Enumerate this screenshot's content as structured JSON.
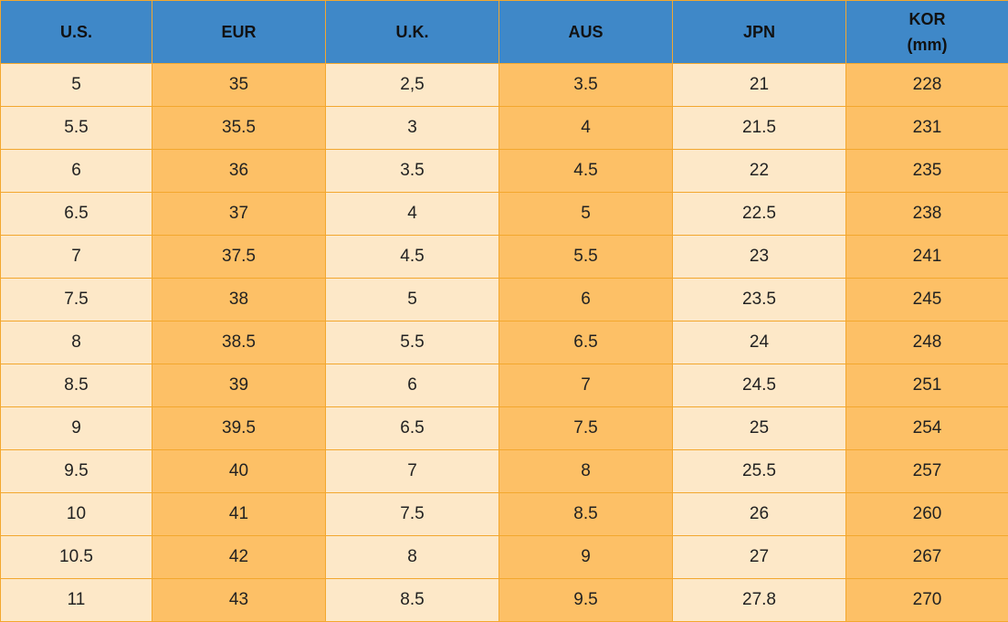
{
  "table": {
    "header": [
      "U.S.",
      "EUR",
      "U.K.",
      "AUS",
      "JPN",
      "KOR (mm)"
    ],
    "rows": [
      [
        "5",
        "35",
        "2,5",
        "3.5",
        "21",
        "228"
      ],
      [
        "5.5",
        "35.5",
        "3",
        "4",
        "21.5",
        "231"
      ],
      [
        "6",
        "36",
        "3.5",
        "4.5",
        "22",
        "235"
      ],
      [
        "6.5",
        "37",
        "4",
        "5",
        "22.5",
        "238"
      ],
      [
        "7",
        "37.5",
        "4.5",
        "5.5",
        "23",
        "241"
      ],
      [
        "7.5",
        "38",
        "5",
        "6",
        "23.5",
        "245"
      ],
      [
        "8",
        "38.5",
        "5.5",
        "6.5",
        "24",
        "248"
      ],
      [
        "8.5",
        "39",
        "6",
        "7",
        "24.5",
        "251"
      ],
      [
        "9",
        "39.5",
        "6.5",
        "7.5",
        "25",
        "254"
      ],
      [
        "9.5",
        "40",
        "7",
        "8",
        "25.5",
        "257"
      ],
      [
        "10",
        "41",
        "7.5",
        "8.5",
        "26",
        "260"
      ],
      [
        "10.5",
        "42",
        "8",
        "9",
        "27",
        "267"
      ],
      [
        "11",
        "43",
        "8.5",
        "9.5",
        "27.8",
        "270"
      ]
    ]
  }
}
